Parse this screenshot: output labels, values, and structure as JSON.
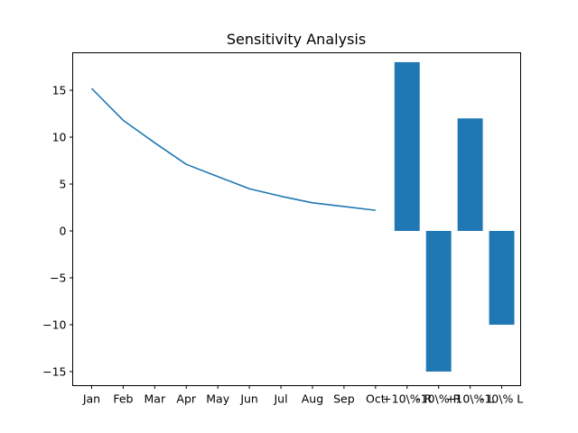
{
  "chart_data": {
    "type": "bar",
    "title": "Sensitivity Analysis",
    "xlabel": "",
    "ylabel": "",
    "categories": [
      "Jan",
      "Feb",
      "Mar",
      "Apr",
      "May",
      "Jun",
      "Jul",
      "Aug",
      "Sep",
      "Oct",
      "+10\\% R",
      "-10\\% R",
      "+10\\% L",
      "-10\\% L"
    ],
    "xtick_labels": [
      "Jan",
      "Feb",
      "Mar",
      "Apr",
      "May",
      "Jun",
      "Jul",
      "Aug",
      "Sep",
      "Oct",
      "+10\\% R",
      "-10\\% R",
      "+10\\% L",
      "-10\\% L"
    ],
    "ylim": [
      -16.5,
      19.0
    ],
    "yticks": [
      -15,
      -10,
      -5,
      0,
      5,
      10,
      15
    ],
    "ytick_labels": [
      "−15",
      "−10",
      "−5",
      "0",
      "5",
      "10",
      "15"
    ],
    "grid": false,
    "series": [
      {
        "type": "line",
        "x": [
          "Jan",
          "Feb",
          "Mar",
          "Apr",
          "May",
          "Jun",
          "Jul",
          "Aug",
          "Sep",
          "Oct"
        ],
        "values": [
          15.2,
          11.8,
          9.4,
          7.1,
          5.8,
          4.5,
          3.7,
          3.0,
          2.6,
          2.2
        ]
      },
      {
        "type": "bar",
        "x": [
          "+10\\% R",
          "-10\\% R",
          "+10\\% L",
          "-10\\% L"
        ],
        "values": [
          18,
          -15,
          12,
          -10
        ]
      }
    ],
    "colors": {
      "line": "#1f77b4",
      "bar": "#1f77b4",
      "axes": "#000000"
    }
  }
}
